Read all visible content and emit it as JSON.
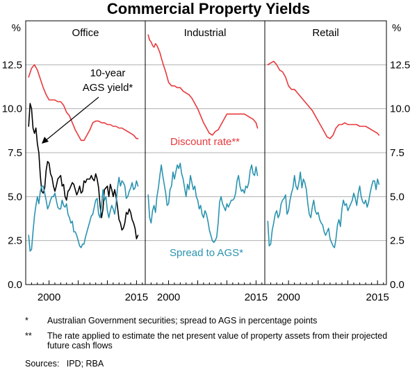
{
  "chart_data": {
    "type": "line",
    "title": "Commercial Property Yields",
    "y_unit": "%",
    "ylim": [
      0,
      15
    ],
    "yticks": [
      0,
      2.5,
      5,
      7.5,
      10,
      12.5
    ],
    "ytick_labels": [
      "0.0",
      "2.5",
      "5.0",
      "7.5",
      "10.0",
      "12.5"
    ],
    "xlim": [
      1996,
      2016.5
    ],
    "xticks": [
      2000,
      2015
    ],
    "xtick_labels": [
      "2000",
      "2015"
    ],
    "annotations": {
      "agsyield": "10-year AGS yield*",
      "discount": "Discount rate**",
      "spread": "Spread to AGS*"
    },
    "colors": {
      "discount": "#e8383b",
      "spread": "#2a93b0",
      "ags": "#000000",
      "grid": "#b0b0b0"
    },
    "panels": [
      {
        "name": "Office",
        "series": [
          {
            "name": "Discount rate",
            "color": "#e8383b",
            "x": [
              1996.5,
              1997,
              1997.5,
              1998,
              1998.5,
              1999,
              1999.5,
              2000,
              2000.5,
              2001,
              2001.5,
              2002,
              2002.5,
              2003,
              2003.5,
              2004,
              2004.5,
              2005,
              2005.5,
              2006,
              2006.5,
              2007,
              2007.5,
              2008,
              2008.5,
              2009,
              2009.5,
              2010,
              2010.5,
              2011,
              2011.5,
              2012,
              2012.5,
              2013,
              2013.5,
              2014,
              2014.5,
              2015,
              2015.25
            ],
            "y": [
              11.8,
              12.3,
              12.5,
              12.2,
              11.7,
              11.2,
              10.8,
              10.5,
              10.5,
              10.5,
              10.4,
              10.4,
              10.2,
              9.8,
              9.6,
              9.2,
              8.8,
              8.5,
              8.2,
              8.2,
              8.5,
              8.8,
              9.2,
              9.3,
              9.3,
              9.2,
              9.2,
              9.1,
              9.1,
              9.0,
              9.0,
              8.9,
              8.9,
              8.8,
              8.7,
              8.6,
              8.5,
              8.3,
              8.3
            ]
          },
          {
            "name": "10-year AGS yield",
            "color": "#000000",
            "x": [
              1996.5,
              1996.75,
              1997,
              1997.25,
              1997.5,
              1997.75,
              1998,
              1998.25,
              1998.5,
              1998.75,
              1999,
              1999.25,
              1999.5,
              1999.75,
              2000,
              2000.25,
              2000.5,
              2000.75,
              2001,
              2001.25,
              2001.5,
              2001.75,
              2002,
              2002.25,
              2002.5,
              2002.75,
              2003,
              2003.25,
              2003.5,
              2003.75,
              2004,
              2004.25,
              2004.5,
              2004.75,
              2005,
              2005.25,
              2005.5,
              2005.75,
              2006,
              2006.25,
              2006.5,
              2006.75,
              2007,
              2007.25,
              2007.5,
              2007.75,
              2008,
              2008.25,
              2008.5,
              2008.75,
              2009,
              2009.25,
              2009.5,
              2009.75,
              2010,
              2010.25,
              2010.5,
              2010.75,
              2011,
              2011.25,
              2011.5,
              2011.75,
              2012,
              2012.25,
              2012.5,
              2012.75,
              2013,
              2013.25,
              2013.5,
              2013.75,
              2014,
              2014.25,
              2014.5,
              2014.75,
              2015,
              2015.25
            ],
            "y": [
              9.0,
              10.3,
              10.0,
              8.9,
              8.6,
              8.9,
              8.0,
              7.5,
              6.2,
              5.3,
              5.2,
              5.5,
              6.5,
              7.0,
              6.9,
              6.3,
              6.1,
              5.6,
              5.3,
              5.6,
              6.0,
              6.1,
              6.2,
              5.6,
              5.7,
              5.0,
              4.8,
              5.3,
              5.4,
              5.6,
              5.8,
              5.7,
              5.4,
              5.1,
              5.3,
              5.6,
              5.2,
              5.3,
              5.9,
              5.8,
              6.0,
              6.0,
              6.0,
              6.2,
              6.0,
              5.9,
              6.3,
              6.0,
              5.5,
              4.5,
              3.8,
              4.3,
              5.4,
              5.5,
              5.6,
              5.0,
              5.7,
              5.4,
              5.0,
              5.4,
              5.0,
              4.4,
              3.7,
              3.5,
              3.1,
              3.2,
              3.5,
              4.1,
              4.0,
              4.3,
              4.1,
              3.7,
              3.5,
              3.2,
              2.6,
              2.8
            ]
          },
          {
            "name": "Spread to AGS",
            "color": "#2a93b0",
            "x": [
              1996.5,
              1996.75,
              1997,
              1997.25,
              1997.5,
              1997.75,
              1998,
              1998.25,
              1998.5,
              1998.75,
              1999,
              1999.25,
              1999.5,
              1999.75,
              2000,
              2000.25,
              2000.5,
              2000.75,
              2001,
              2001.25,
              2001.5,
              2001.75,
              2002,
              2002.25,
              2002.5,
              2002.75,
              2003,
              2003.25,
              2003.5,
              2003.75,
              2004,
              2004.25,
              2004.5,
              2004.75,
              2005,
              2005.25,
              2005.5,
              2005.75,
              2006,
              2006.25,
              2006.5,
              2006.75,
              2007,
              2007.25,
              2007.5,
              2007.75,
              2008,
              2008.25,
              2008.5,
              2008.75,
              2009,
              2009.25,
              2009.5,
              2009.75,
              2010,
              2010.25,
              2010.5,
              2010.75,
              2011,
              2011.25,
              2011.5,
              2011.75,
              2012,
              2012.25,
              2012.5,
              2012.75,
              2013,
              2013.25,
              2013.5,
              2013.75,
              2014,
              2014.25,
              2014.5,
              2014.75,
              2015,
              2015.25
            ],
            "y": [
              2.8,
              1.9,
              2.0,
              3.0,
              3.9,
              4.5,
              5.0,
              4.6,
              5.3,
              5.6,
              5.6,
              5.2,
              4.8,
              4.3,
              4.5,
              4.8,
              5.0,
              5.0,
              5.2,
              4.8,
              4.4,
              4.3,
              4.3,
              4.8,
              4.5,
              4.4,
              4.6,
              4.0,
              3.8,
              3.5,
              3.6,
              3.0,
              3.0,
              2.8,
              2.5,
              2.2,
              2.1,
              2.3,
              2.3,
              2.7,
              3.0,
              3.3,
              3.6,
              3.9,
              4.0,
              4.4,
              4.8,
              4.9,
              4.0,
              3.8,
              4.5,
              5.4,
              4.8,
              5.0,
              4.2,
              3.8,
              4.2,
              4.5,
              4.3,
              4.0,
              4.6,
              5.5,
              6.1,
              5.6,
              5.9,
              5.8,
              5.6,
              4.9,
              5.0,
              5.3,
              5.5,
              5.8,
              5.4,
              5.5,
              5.9,
              5.6
            ]
          }
        ]
      },
      {
        "name": "Industrial",
        "series": [
          {
            "name": "Discount rate",
            "color": "#e8383b",
            "x": [
              1996.5,
              1996.75,
              1997,
              1997.25,
              1997.5,
              1997.75,
              1998,
              1998.5,
              1999,
              1999.5,
              2000,
              2000.5,
              2001,
              2001.5,
              2002,
              2002.5,
              2003,
              2003.5,
              2004,
              2004.5,
              2005,
              2005.5,
              2006,
              2006.5,
              2007,
              2007.5,
              2008,
              2008.5,
              2009,
              2009.5,
              2010,
              2010.5,
              2011,
              2011.5,
              2012,
              2012.5,
              2013,
              2013.5,
              2014,
              2014.5,
              2015,
              2015.25
            ],
            "y": [
              14.2,
              13.9,
              13.8,
              13.6,
              13.5,
              13.7,
              13.6,
              13.2,
              12.6,
              12.1,
              11.5,
              11.3,
              11.3,
              11.2,
              11.2,
              11.0,
              10.9,
              10.8,
              10.6,
              10.3,
              10.0,
              9.6,
              9.2,
              8.9,
              8.6,
              8.5,
              8.7,
              8.8,
              9.1,
              9.4,
              9.7,
              9.7,
              9.7,
              9.7,
              9.7,
              9.7,
              9.7,
              9.6,
              9.5,
              9.4,
              9.2,
              8.9
            ]
          },
          {
            "name": "Spread to AGS",
            "color": "#2a93b0",
            "x": [
              1996.5,
              1996.75,
              1997,
              1997.25,
              1997.5,
              1997.75,
              1998,
              1998.25,
              1998.5,
              1998.75,
              1999,
              1999.25,
              1999.5,
              1999.75,
              2000,
              2000.25,
              2000.5,
              2000.75,
              2001,
              2001.25,
              2001.5,
              2001.75,
              2002,
              2002.25,
              2002.5,
              2002.75,
              2003,
              2003.25,
              2003.5,
              2003.75,
              2004,
              2004.25,
              2004.5,
              2004.75,
              2005,
              2005.25,
              2005.5,
              2005.75,
              2006,
              2006.25,
              2006.5,
              2006.75,
              2007,
              2007.25,
              2007.5,
              2007.75,
              2008,
              2008.25,
              2008.5,
              2008.75,
              2009,
              2009.25,
              2009.5,
              2009.75,
              2010,
              2010.25,
              2010.5,
              2010.75,
              2011,
              2011.25,
              2011.5,
              2011.75,
              2012,
              2012.25,
              2012.5,
              2012.75,
              2013,
              2013.25,
              2013.5,
              2013.75,
              2014,
              2014.25,
              2014.5,
              2014.75,
              2015,
              2015.25
            ],
            "y": [
              5.1,
              3.8,
              3.5,
              4.2,
              4.5,
              4.1,
              5.0,
              5.5,
              6.2,
              6.8,
              6.2,
              5.7,
              5.2,
              4.5,
              4.6,
              5.4,
              5.6,
              6.4,
              6.0,
              6.4,
              6.8,
              6.6,
              6.9,
              6.3,
              6.0,
              5.5,
              5.0,
              5.7,
              5.4,
              6.2,
              5.8,
              5.4,
              5.6,
              5.0,
              4.8,
              4.3,
              4.5,
              4.0,
              3.8,
              4.2,
              4.0,
              3.6,
              3.1,
              2.8,
              2.5,
              2.4,
              2.5,
              2.7,
              3.5,
              4.7,
              5.0,
              4.6,
              4.4,
              4.2,
              4.6,
              4.4,
              4.6,
              4.8,
              4.8,
              4.9,
              5.2,
              5.9,
              6.2,
              5.6,
              5.3,
              5.4,
              5.2,
              5.6,
              5.5,
              5.8,
              6.5,
              6.8,
              6.3,
              6.2,
              6.7,
              6.2
            ]
          }
        ]
      },
      {
        "name": "Retail",
        "series": [
          {
            "name": "Discount rate",
            "color": "#e8383b",
            "x": [
              1996.5,
              1997,
              1997.5,
              1998,
              1998.5,
              1999,
              1999.5,
              2000,
              2000.5,
              2001,
              2001.5,
              2002,
              2002.5,
              2003,
              2003.5,
              2004,
              2004.5,
              2005,
              2005.5,
              2006,
              2006.5,
              2007,
              2007.5,
              2008,
              2008.5,
              2009,
              2009.5,
              2010,
              2010.5,
              2011,
              2011.5,
              2012,
              2012.5,
              2013,
              2013.5,
              2014,
              2014.5,
              2015,
              2015.25
            ],
            "y": [
              12.5,
              12.6,
              12.7,
              12.5,
              12.2,
              12.1,
              11.8,
              11.3,
              11.1,
              11.1,
              10.9,
              10.7,
              10.5,
              10.3,
              10.1,
              9.9,
              9.6,
              9.3,
              9.0,
              8.7,
              8.4,
              8.3,
              8.5,
              8.9,
              9.1,
              9.1,
              9.2,
              9.1,
              9.1,
              9.1,
              9.1,
              9.0,
              9.0,
              9.0,
              8.9,
              8.8,
              8.7,
              8.6,
              8.5
            ]
          },
          {
            "name": "Spread to AGS",
            "color": "#2a93b0",
            "x": [
              1996.5,
              1996.75,
              1997,
              1997.25,
              1997.5,
              1997.75,
              1998,
              1998.25,
              1998.5,
              1998.75,
              1999,
              1999.25,
              1999.5,
              1999.75,
              2000,
              2000.25,
              2000.5,
              2000.75,
              2001,
              2001.25,
              2001.5,
              2001.75,
              2002,
              2002.25,
              2002.5,
              2002.75,
              2003,
              2003.25,
              2003.5,
              2003.75,
              2004,
              2004.25,
              2004.5,
              2004.75,
              2005,
              2005.25,
              2005.5,
              2005.75,
              2006,
              2006.25,
              2006.5,
              2006.75,
              2007,
              2007.25,
              2007.5,
              2007.75,
              2008,
              2008.25,
              2008.5,
              2008.75,
              2009,
              2009.25,
              2009.5,
              2009.75,
              2010,
              2010.25,
              2010.5,
              2010.75,
              2011,
              2011.25,
              2011.5,
              2011.75,
              2012,
              2012.25,
              2012.5,
              2012.75,
              2013,
              2013.25,
              2013.5,
              2013.75,
              2014,
              2014.25,
              2014.5,
              2014.75,
              2015,
              2015.25
            ],
            "y": [
              3.6,
              2.2,
              2.3,
              3.1,
              3.5,
              4.0,
              4.2,
              3.8,
              4.0,
              4.6,
              4.8,
              4.9,
              5.1,
              4.0,
              4.2,
              4.8,
              5.2,
              5.5,
              6.2,
              5.6,
              5.4,
              5.8,
              6.4,
              5.5,
              6.0,
              5.8,
              5.4,
              4.6,
              4.0,
              3.8,
              4.4,
              4.8,
              4.2,
              4.0,
              4.1,
              3.7,
              3.5,
              3.4,
              3.0,
              2.8,
              3.0,
              3.2,
              2.6,
              2.4,
              2.2,
              2.1,
              2.6,
              3.4,
              3.7,
              3.3,
              4.3,
              4.8,
              4.5,
              4.6,
              4.2,
              4.4,
              4.6,
              4.8,
              5.2,
              4.9,
              4.5,
              5.2,
              5.6,
              5.0,
              4.7,
              4.6,
              4.8,
              4.4,
              4.7,
              5.2,
              5.6,
              5.9,
              5.9,
              5.4,
              6.0,
              5.7
            ]
          }
        ]
      }
    ],
    "footnotes": [
      {
        "marker": "*",
        "text": "Australian Government securities; spread to AGS in percentage points"
      },
      {
        "marker": "**",
        "text": "The rate applied to estimate the net present value of property assets from their projected future cash flows"
      }
    ],
    "sources": "Sources:   IPD; RBA"
  }
}
